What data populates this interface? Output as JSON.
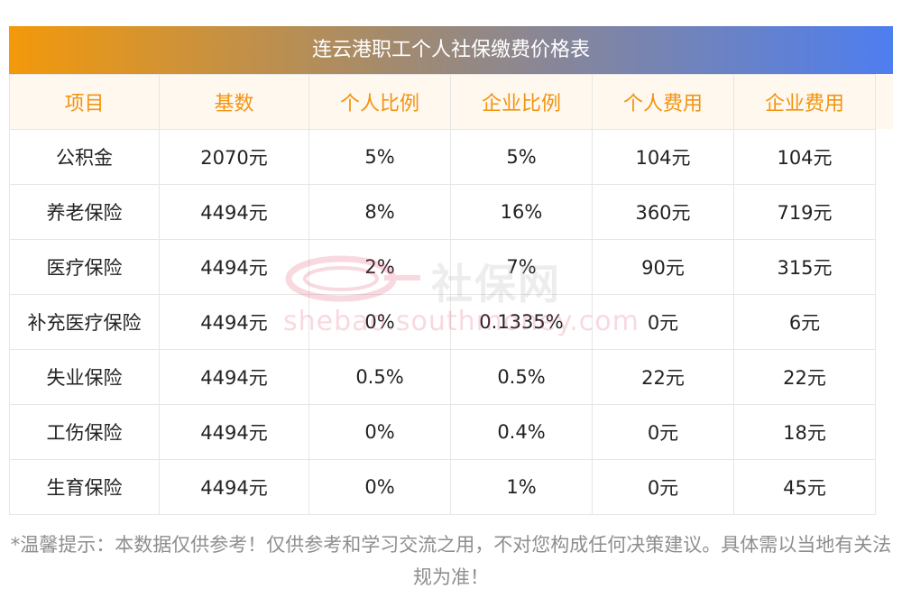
{
  "title": "连云港职工个人社保缴费价格表",
  "columns": [
    "项目",
    "基数",
    "个人比例",
    "企业比例",
    "个人费用",
    "企业费用"
  ],
  "rows": [
    [
      "公积金",
      "2070元",
      "5%",
      "5%",
      "104元",
      "104元"
    ],
    [
      "养老保险",
      "4494元",
      "8%",
      "16%",
      "360元",
      "719元"
    ],
    [
      "医疗保险",
      "4494元",
      "2%",
      "7%",
      "90元",
      "315元"
    ],
    [
      "补充医疗保险",
      "4494元",
      "0%",
      "0.1335%",
      "0元",
      "6元"
    ],
    [
      "失业保险",
      "4494元",
      "0.5%",
      "0.5%",
      "22元",
      "22元"
    ],
    [
      "工伤保险",
      "4494元",
      "0%",
      "0.4%",
      "0元",
      "18元"
    ],
    [
      "生育保险",
      "4494元",
      "0%",
      "1%",
      "0元",
      "45元"
    ]
  ],
  "watermark": {
    "brand": "社保网",
    "url": "shebao.southmoney.com"
  },
  "note": "*温馨提示：本数据仅供参考！仅供参考和学习交流之用，不对您构成任何决策建议。具体需以当地有关法规为准！",
  "colors": {
    "title_gradient_start": "#f3990a",
    "title_gradient_end": "#4e7ef0",
    "header_text": "#f29411",
    "header_bg": "#fff8ef",
    "note_text": "#8e8e8e"
  }
}
